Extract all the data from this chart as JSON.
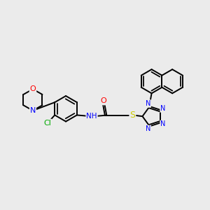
{
  "bg_color": "#ebebeb",
  "bond_color": "#000000",
  "bond_width": 1.4,
  "atom_colors": {
    "O": "#ff0000",
    "N": "#0000ff",
    "S": "#cccc00",
    "Cl": "#00aa00",
    "H": "#000000",
    "C": "#000000"
  },
  "figsize": [
    3.0,
    3.0
  ],
  "dpi": 100,
  "xlim": [
    0,
    10
  ],
  "ylim": [
    0,
    10
  ]
}
